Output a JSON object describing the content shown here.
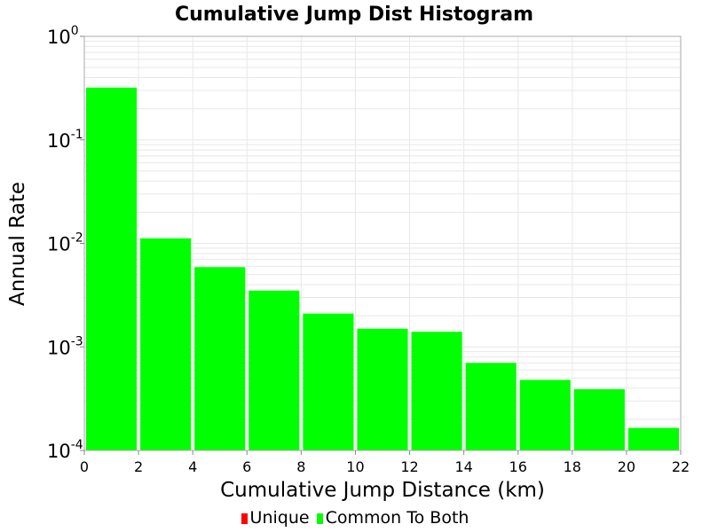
{
  "chart_data": {
    "type": "bar",
    "title": "Cumulative Jump Dist Histogram",
    "xlabel": "Cumulative Jump Distance (km)",
    "ylabel": "Annual Rate",
    "xlim": [
      0,
      22
    ],
    "ylim": [
      0.0001,
      1
    ],
    "yscale": "log",
    "grid": true,
    "x_ticks": [
      0,
      2,
      4,
      6,
      8,
      10,
      12,
      14,
      16,
      18,
      20,
      22
    ],
    "y_ticks": [
      {
        "value": 1,
        "base": "10",
        "exp": "0"
      },
      {
        "value": 0.1,
        "base": "10",
        "exp": "-1"
      },
      {
        "value": 0.01,
        "base": "10",
        "exp": "-2"
      },
      {
        "value": 0.001,
        "base": "10",
        "exp": "-3"
      },
      {
        "value": 0.0001,
        "base": "10",
        "exp": "-4"
      }
    ],
    "bin_width": 2,
    "legend_position": "bottom",
    "series": [
      {
        "name": "Unique",
        "color": "#ff0000",
        "bins": [],
        "values": []
      },
      {
        "name": "Common To Both",
        "color": "#00ff00",
        "bins": [
          1,
          3,
          5,
          7,
          9,
          11,
          13,
          15,
          17,
          19,
          21
        ],
        "values": [
          0.32,
          0.0112,
          0.0059,
          0.0035,
          0.0021,
          0.0015,
          0.0014,
          0.0007,
          0.00048,
          0.00039,
          0.000165
        ]
      }
    ]
  }
}
